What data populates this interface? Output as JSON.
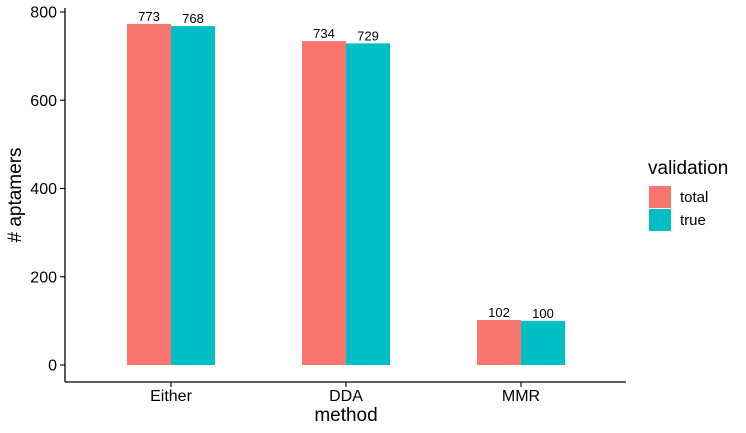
{
  "chart_data": {
    "type": "bar",
    "categories": [
      "Either",
      "DDA",
      "MMR"
    ],
    "series": [
      {
        "name": "total",
        "color": "#F8766D",
        "values": [
          773,
          734,
          102
        ]
      },
      {
        "name": "true",
        "color": "#00BFC4",
        "values": [
          768,
          729,
          100
        ]
      }
    ],
    "xlabel": "method",
    "ylabel": "# aptamers",
    "ylim": [
      0,
      800
    ],
    "yticks": [
      0,
      200,
      400,
      600,
      800
    ],
    "legend": {
      "title": "validation",
      "position": "right"
    },
    "grid": false
  }
}
